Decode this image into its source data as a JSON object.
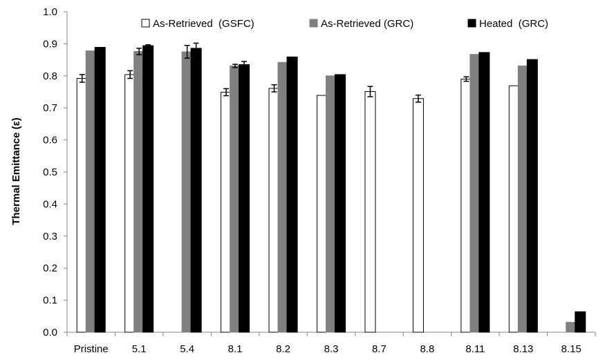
{
  "chart_data": {
    "type": "bar",
    "title": "",
    "xlabel": "",
    "ylabel": "Thermal Emittance (ε)",
    "ylim": [
      0,
      1.0
    ],
    "ytick_step": 0.1,
    "grid": false,
    "legend_position": "top",
    "categories": [
      "Pristine",
      "5.1",
      "5.4",
      "8.1",
      "8.2",
      "8.3",
      "8.7",
      "8.8",
      "8.11",
      "8.13",
      "8.15"
    ],
    "series": [
      {
        "name": "As-Retrieved  (GSFC)",
        "fill": "#ffffff",
        "stroke": "#000000",
        "values": [
          0.792,
          0.804,
          null,
          0.749,
          0.761,
          0.739,
          0.751,
          0.729,
          0.79,
          0.769,
          null
        ],
        "errors": [
          0.012,
          0.012,
          null,
          0.011,
          0.011,
          null,
          0.016,
          0.011,
          0.007,
          null,
          null
        ]
      },
      {
        "name": "As-Retrieved (GRC)",
        "fill": "#808080",
        "stroke": "#808080",
        "values": [
          0.878,
          0.876,
          0.875,
          0.831,
          0.842,
          0.8,
          null,
          null,
          0.867,
          0.831,
          0.031
        ],
        "errors": [
          null,
          0.01,
          0.02,
          0.005,
          null,
          null,
          null,
          null,
          null,
          null,
          null
        ]
      },
      {
        "name": "Heated  (GRC)",
        "fill": "#000000",
        "stroke": "#000000",
        "values": [
          0.889,
          0.894,
          0.886,
          0.835,
          0.859,
          0.804,
          null,
          null,
          0.873,
          0.851,
          0.064
        ],
        "errors": [
          null,
          0.003,
          0.016,
          0.01,
          null,
          null,
          null,
          null,
          null,
          null,
          null
        ]
      }
    ]
  }
}
